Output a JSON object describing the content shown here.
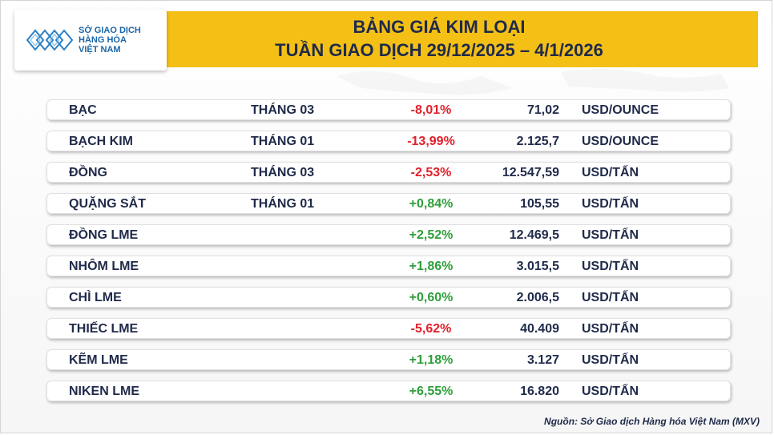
{
  "logo": {
    "line1": "SỞ GIAO DỊCH",
    "line2": "HÀNG HÓA",
    "line3": "VIỆT NAM",
    "color": "#1a66a8"
  },
  "header": {
    "title_line1": "BẢNG GIÁ KIM LOẠI",
    "title_line2": "TUẦN GIAO DỊCH 29/12/2025 – 4/1/2026",
    "accent_color": "#f4c016"
  },
  "rows": [
    {
      "name": "BẠC",
      "month": "THÁNG 03",
      "change": "-8,01%",
      "price": "71,02",
      "unit": "USD/OUNCE",
      "trend": "down"
    },
    {
      "name": "BẠCH KIM",
      "month": "THÁNG 01",
      "change": "-13,99%",
      "price": "2.125,7",
      "unit": "USD/OUNCE",
      "trend": "down"
    },
    {
      "name": "ĐỒNG",
      "month": "THÁNG 03",
      "change": "-2,53%",
      "price": "12.547,59",
      "unit": "USD/TẤN",
      "trend": "down"
    },
    {
      "name": "QUẶNG SẮT",
      "month": "THÁNG 01",
      "change": "+0,84%",
      "price": "105,55",
      "unit": "USD/TẤN",
      "trend": "up"
    },
    {
      "name": "ĐỒNG LME",
      "month": "",
      "change": "+2,52%",
      "price": "12.469,5",
      "unit": "USD/TẤN",
      "trend": "up"
    },
    {
      "name": "NHÔM LME",
      "month": "",
      "change": "+1,86%",
      "price": "3.015,5",
      "unit": "USD/TẤN",
      "trend": "up"
    },
    {
      "name": "CHÌ LME",
      "month": "",
      "change": "+0,60%",
      "price": "2.006,5",
      "unit": "USD/TẤN",
      "trend": "up"
    },
    {
      "name": "THIẾC LME",
      "month": "",
      "change": "-5,62%",
      "price": "40.409",
      "unit": "USD/TẤN",
      "trend": "down"
    },
    {
      "name": "KẼM LME",
      "month": "",
      "change": "+1,18%",
      "price": "3.127",
      "unit": "USD/TẤN",
      "trend": "up"
    },
    {
      "name": "NIKEN LME",
      "month": "",
      "change": "+6,55%",
      "price": "16.820",
      "unit": "USD/TẤN",
      "trend": "up"
    }
  ],
  "colors": {
    "negative": "#e0202a",
    "positive": "#2e9e3a",
    "text": "#1f2a4a"
  },
  "footer": {
    "source": "Nguồn: Sở Giao dịch Hàng hóa Việt Nam (MXV)"
  }
}
